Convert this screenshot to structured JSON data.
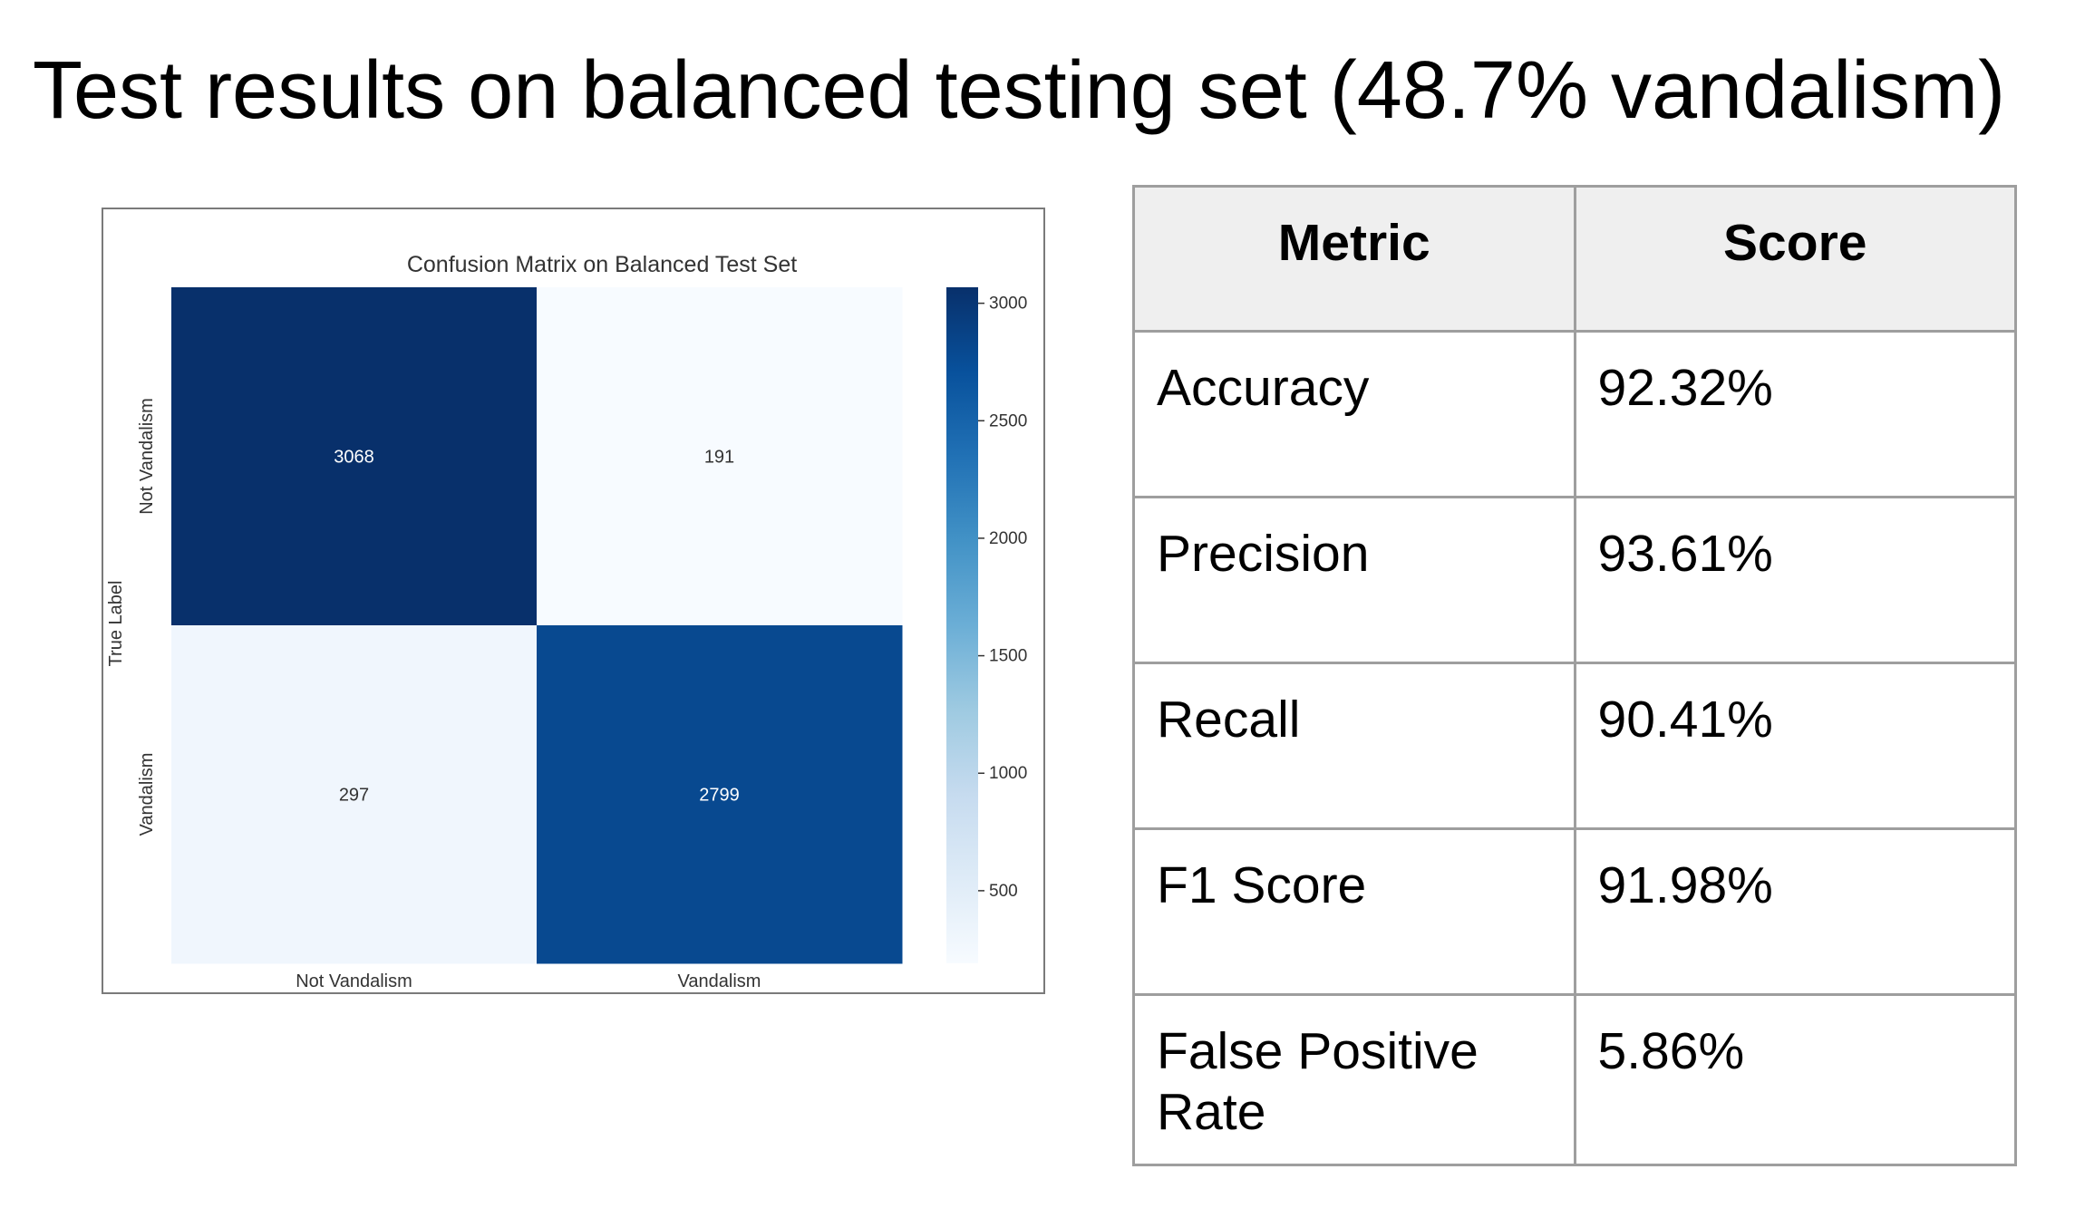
{
  "page": {
    "title": "Test results on balanced testing set (48.7% vandalism)"
  },
  "metrics_table": {
    "headers": [
      "Metric",
      "Score"
    ],
    "rows": [
      {
        "metric": "Accuracy",
        "score": "92.32%"
      },
      {
        "metric": "Precision",
        "score": "93.61%"
      },
      {
        "metric": "Recall",
        "score": "90.41%"
      },
      {
        "metric": "F1 Score",
        "score": "91.98%"
      },
      {
        "metric": "False Positive Rate",
        "score": "5.86%"
      }
    ]
  },
  "chart_data": [
    {
      "type": "heatmap",
      "title": "Confusion Matrix on Balanced Test Set",
      "xlabel": "",
      "ylabel": "True Label",
      "x_categories": [
        "Not Vandalism",
        "Vandalism"
      ],
      "y_categories": [
        "Not Vandalism",
        "Vandalism"
      ],
      "values": [
        [
          3068,
          191
        ],
        [
          297,
          2799
        ]
      ],
      "colorbar": {
        "colormap": "Blues",
        "range": [
          191,
          3068
        ],
        "ticks": [
          3000,
          2500,
          2000,
          1500,
          1000,
          500
        ]
      },
      "grid": false
    },
    {
      "type": "table",
      "headers": [
        "Metric",
        "Score"
      ],
      "rows": [
        [
          "Accuracy",
          "92.32%"
        ],
        [
          "Precision",
          "93.61%"
        ],
        [
          "Recall",
          "90.41%"
        ],
        [
          "F1 Score",
          "91.98%"
        ],
        [
          "False Positive Rate",
          "5.86%"
        ]
      ]
    }
  ]
}
